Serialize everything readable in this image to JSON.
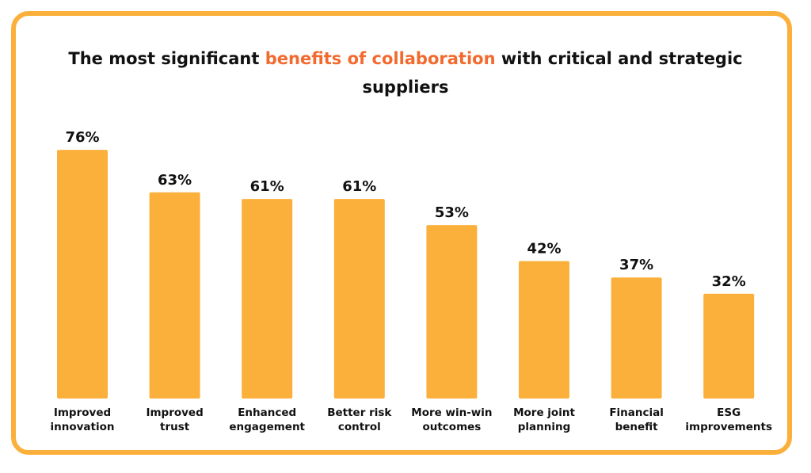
{
  "chart_data": {
    "type": "bar",
    "title_parts": {
      "before": "The most significant ",
      "highlight": "benefits of collaboration",
      "after": " with critical and strategic suppliers"
    },
    "categories": [
      [
        "Improved",
        "innovation"
      ],
      [
        "Improved",
        "trust"
      ],
      [
        "Enhanced",
        "engagement"
      ],
      [
        "Better risk",
        "control"
      ],
      [
        "More win-win",
        "outcomes"
      ],
      [
        "More joint",
        "planning"
      ],
      [
        "Financial",
        "benefit"
      ],
      [
        "ESG",
        "improvements"
      ]
    ],
    "values": [
      76,
      63,
      61,
      61,
      53,
      42,
      37,
      32
    ],
    "value_labels": [
      "76%",
      "63%",
      "61%",
      "61%",
      "53%",
      "42%",
      "37%",
      "32%"
    ],
    "ylim": [
      0,
      100
    ],
    "grid": false,
    "colors": {
      "bar": "#fbb03b",
      "border": "#fbb03b",
      "highlight": "#f26a2e",
      "text": "#111111"
    }
  }
}
